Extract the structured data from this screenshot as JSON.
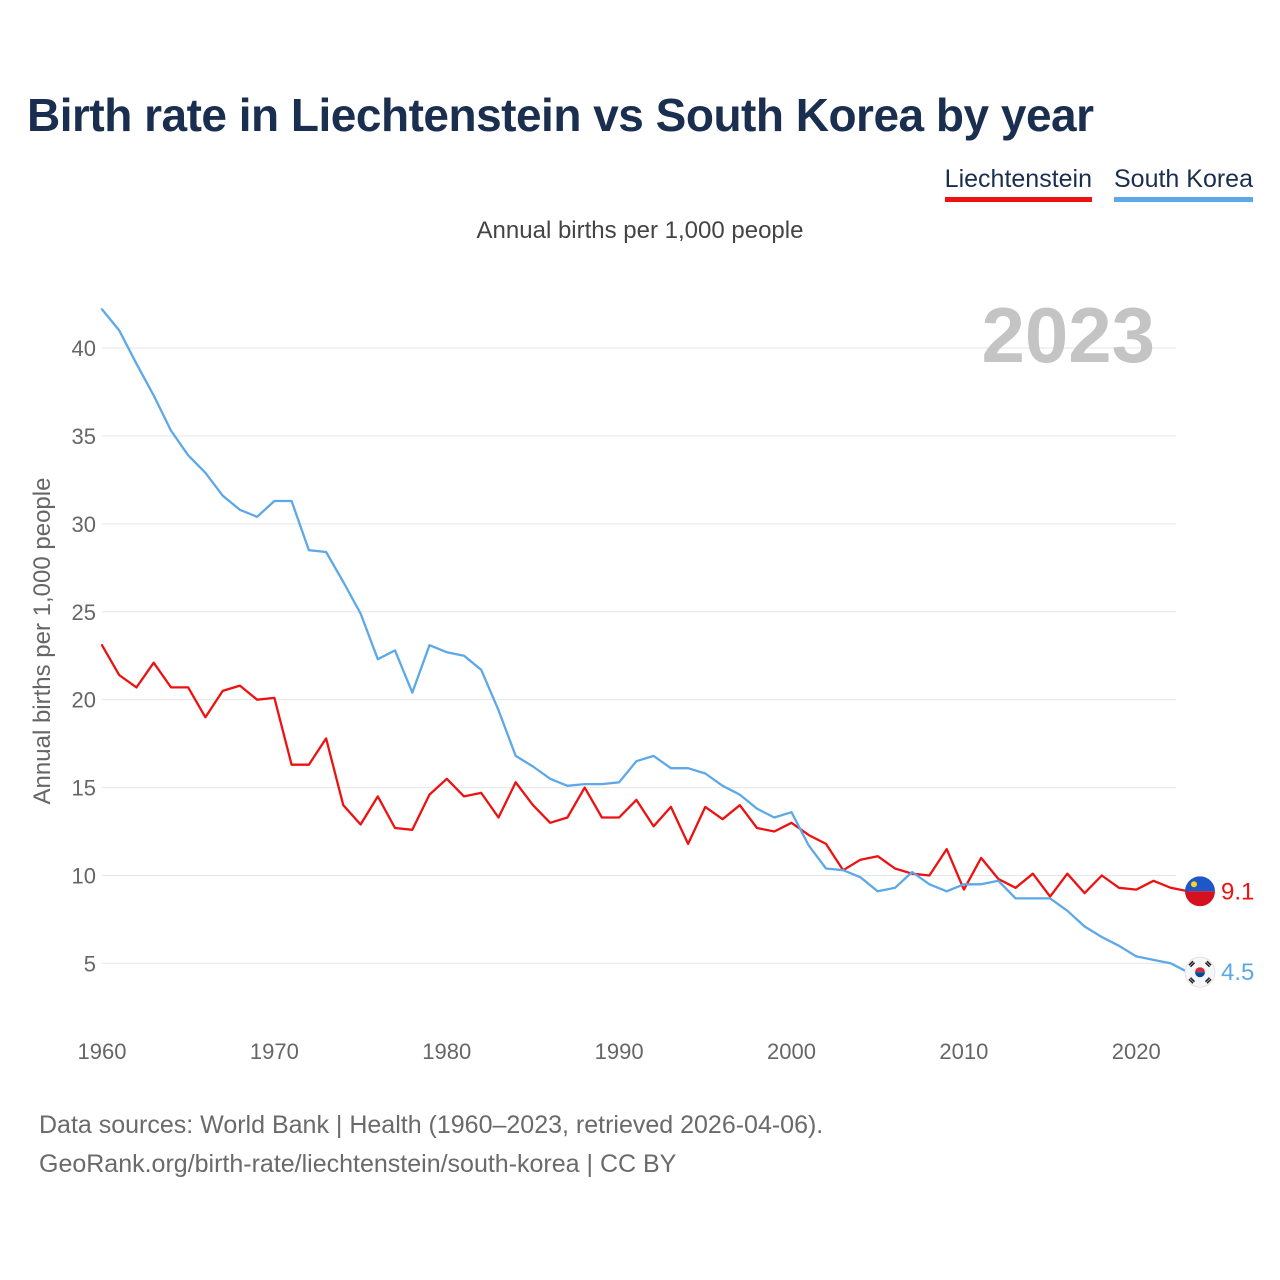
{
  "header": {
    "title": "Birth rate in Liechtenstein vs South Korea by year",
    "subtitle": "Annual births per 1,000 people"
  },
  "legend": [
    {
      "name": "Liechtenstein",
      "color": "#ee1111"
    },
    {
      "name": "South Korea",
      "color": "#5da8e8"
    }
  ],
  "footer": {
    "line1": "Data sources: World Bank | Health (1960–2023, retrieved 2026-04-06).",
    "line2": "GeoRank.org/birth-rate/liechtenstein/south-korea | CC BY"
  },
  "chart_data": {
    "type": "line",
    "title": "Birth rate in Liechtenstein vs South Korea by year",
    "subtitle": "Annual births per 1,000 people",
    "ylabel": "Annual births per 1,000 people",
    "xlabel": "",
    "year_label": "2023",
    "xlim": [
      1960,
      2023
    ],
    "ylim": [
      1.5,
      45
    ],
    "x_ticks": [
      1960,
      1970,
      1980,
      1990,
      2000,
      2010,
      2020
    ],
    "y_ticks": [
      5,
      10,
      15,
      20,
      25,
      30,
      35,
      40
    ],
    "grid": true,
    "x": [
      1960,
      1961,
      1962,
      1963,
      1964,
      1965,
      1966,
      1967,
      1968,
      1969,
      1970,
      1971,
      1972,
      1973,
      1974,
      1975,
      1976,
      1977,
      1978,
      1979,
      1980,
      1981,
      1982,
      1983,
      1984,
      1985,
      1986,
      1987,
      1988,
      1989,
      1990,
      1991,
      1992,
      1993,
      1994,
      1995,
      1996,
      1997,
      1998,
      1999,
      2000,
      2001,
      2002,
      2003,
      2004,
      2005,
      2006,
      2007,
      2008,
      2009,
      2010,
      2011,
      2012,
      2013,
      2014,
      2015,
      2016,
      2017,
      2018,
      2019,
      2020,
      2021,
      2022,
      2023
    ],
    "series": [
      {
        "name": "Liechtenstein",
        "color": "#ee1111",
        "end_label": "9.1",
        "values": [
          23.1,
          21.4,
          20.7,
          22.1,
          20.7,
          20.7,
          19.0,
          20.5,
          20.8,
          20.0,
          20.1,
          16.3,
          16.3,
          17.8,
          14.0,
          12.9,
          14.5,
          12.7,
          12.6,
          14.6,
          15.5,
          14.5,
          14.7,
          13.3,
          15.3,
          14.0,
          13.0,
          13.3,
          15.0,
          13.3,
          13.3,
          14.3,
          12.8,
          13.9,
          11.8,
          13.9,
          13.2,
          14.0,
          12.7,
          12.5,
          13.0,
          12.3,
          11.8,
          10.3,
          10.9,
          11.1,
          10.4,
          10.1,
          10.0,
          11.5,
          9.2,
          11.0,
          9.8,
          9.3,
          10.1,
          8.8,
          10.1,
          9.0,
          10.0,
          9.3,
          9.2,
          9.7,
          9.3,
          9.1
        ]
      },
      {
        "name": "South Korea",
        "color": "#5da8e8",
        "end_label": "4.5",
        "values": [
          42.2,
          41.0,
          39.1,
          37.3,
          35.3,
          33.9,
          32.9,
          31.6,
          30.8,
          30.4,
          31.3,
          31.3,
          28.5,
          28.4,
          26.7,
          24.9,
          22.3,
          22.8,
          20.4,
          23.1,
          22.7,
          22.5,
          21.7,
          19.4,
          16.8,
          16.2,
          15.5,
          15.1,
          15.2,
          15.2,
          15.3,
          16.5,
          16.8,
          16.1,
          16.1,
          15.8,
          15.1,
          14.6,
          13.8,
          13.3,
          13.6,
          11.7,
          10.4,
          10.3,
          9.9,
          9.1,
          9.3,
          10.2,
          9.5,
          9.1,
          9.5,
          9.5,
          9.7,
          8.7,
          8.7,
          8.7,
          8.0,
          7.1,
          6.5,
          6.0,
          5.4,
          5.2,
          5.0,
          4.5
        ]
      }
    ]
  }
}
